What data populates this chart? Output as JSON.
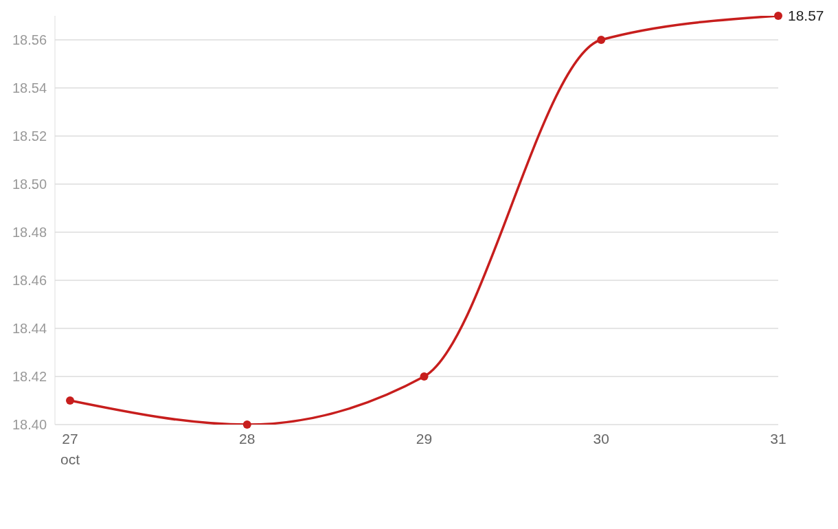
{
  "chart_data": {
    "type": "line",
    "categories": [
      "27 oct",
      "28",
      "29",
      "30",
      "31"
    ],
    "series": [
      {
        "color": "#c71e1d",
        "values": [
          18.41,
          18.4,
          18.42,
          18.56,
          18.57
        ],
        "value_labels": [
          null,
          null,
          null,
          null,
          "18.57"
        ]
      }
    ],
    "yticks": [
      {
        "value": 18.4,
        "label": "18.40"
      },
      {
        "value": 18.42,
        "label": "18.42"
      },
      {
        "value": 18.44,
        "label": "18.44"
      },
      {
        "value": 18.46,
        "label": "18.46"
      },
      {
        "value": 18.48,
        "label": "18.48"
      },
      {
        "value": 18.5,
        "label": "18.50"
      },
      {
        "value": 18.52,
        "label": "18.52"
      },
      {
        "value": 18.54,
        "label": "18.54"
      },
      {
        "value": 18.56,
        "label": "18.56"
      }
    ],
    "ylim": [
      18.4,
      18.57
    ],
    "grid": "y",
    "marker": "circle",
    "line_style": "solid",
    "legend": false
  }
}
